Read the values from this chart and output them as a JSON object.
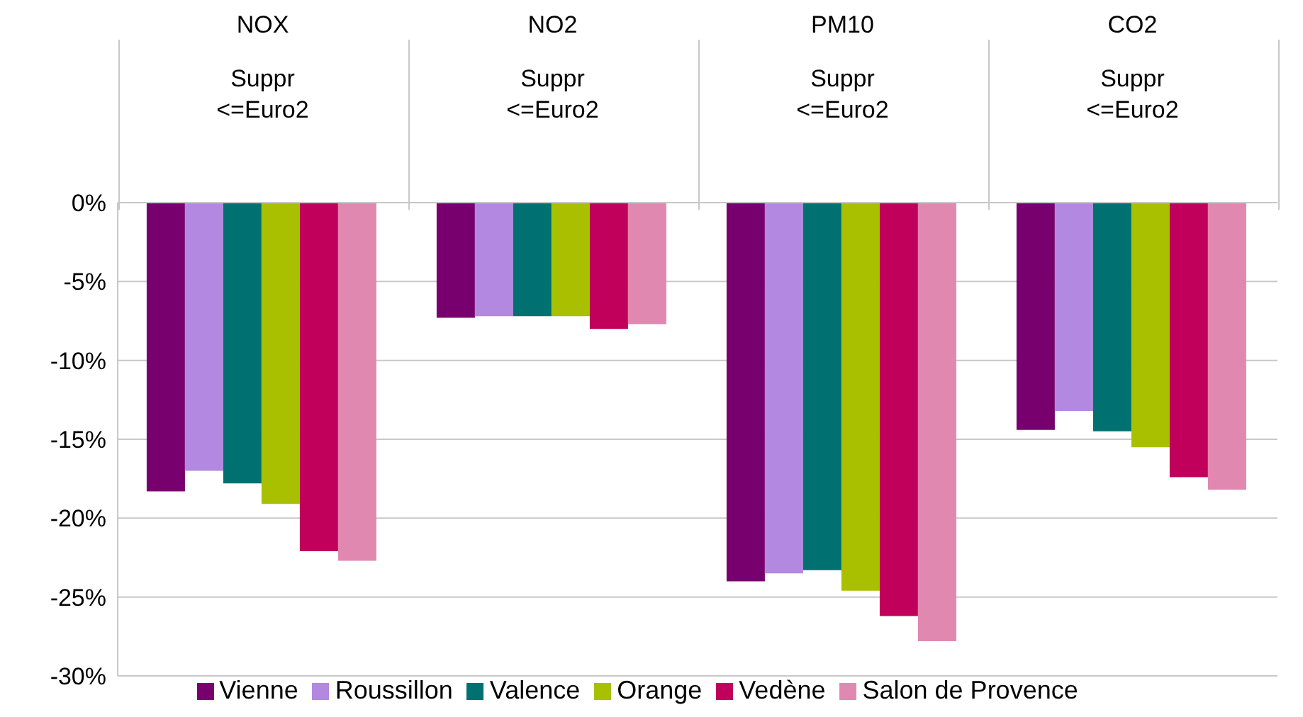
{
  "chart_data": {
    "type": "bar",
    "categories": [
      "NOX\nSuppr\n<=Euro2",
      "NO2\nSuppr\n<=Euro2",
      "PM10\nSuppr\n<=Euro2",
      "CO2\nSuppr\n<=Euro2"
    ],
    "series": [
      {
        "name": "Vienne",
        "color": "#78006e",
        "values": [
          -18.3,
          -7.3,
          -24.0,
          -14.4
        ]
      },
      {
        "name": "Roussillon",
        "color": "#b388e0",
        "values": [
          -17.0,
          -7.2,
          -23.5,
          -13.2
        ]
      },
      {
        "name": "Valence",
        "color": "#007070",
        "values": [
          -17.8,
          -7.2,
          -23.3,
          -14.5
        ]
      },
      {
        "name": "Orange",
        "color": "#a8c000",
        "values": [
          -19.1,
          -7.2,
          -24.6,
          -15.5
        ]
      },
      {
        "name": "Vedène",
        "color": "#c0005a",
        "values": [
          -22.1,
          -8.0,
          -26.2,
          -17.4
        ]
      },
      {
        "name": "Salon de Provence",
        "color": "#e088b0",
        "values": [
          -22.7,
          -7.7,
          -27.8,
          -18.2
        ]
      }
    ],
    "ylim": [
      -30,
      0
    ],
    "yticks": [
      {
        "value": 0,
        "label": "0%"
      },
      {
        "value": -5,
        "label": "-5%"
      },
      {
        "value": -10,
        "label": "-10%"
      },
      {
        "value": -15,
        "label": "-15%"
      },
      {
        "value": -20,
        "label": "-20%"
      },
      {
        "value": -25,
        "label": "-25%"
      },
      {
        "value": -30,
        "label": "-30%"
      }
    ],
    "grid": "y",
    "legend": "bottom"
  }
}
